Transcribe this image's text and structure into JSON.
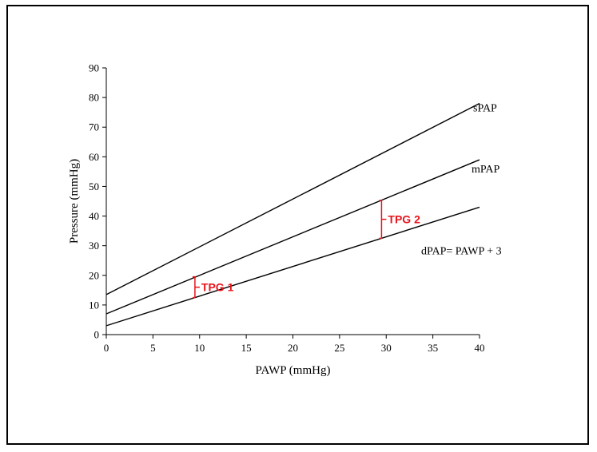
{
  "chart_data": {
    "type": "line",
    "title": "",
    "xlabel": "PAWP (mmHg)",
    "ylabel": "Pressure (mmHg)",
    "xlim": [
      0,
      40
    ],
    "ylim": [
      0,
      90
    ],
    "xticks": [
      0,
      5,
      10,
      15,
      20,
      25,
      30,
      35,
      40
    ],
    "yticks": [
      0,
      10,
      20,
      30,
      40,
      50,
      60,
      70,
      80,
      90
    ],
    "grid": false,
    "series": [
      {
        "name": "sPAP",
        "x": [
          0,
          40
        ],
        "y": [
          13.5,
          78
        ]
      },
      {
        "name": "mPAP",
        "x": [
          0,
          40
        ],
        "y": [
          7,
          59
        ]
      },
      {
        "name": "dPAP= PAWP + 3",
        "x": [
          0,
          40
        ],
        "y": [
          3,
          43
        ]
      }
    ],
    "annotations": [
      {
        "label": "TPG 1",
        "x": 9.5,
        "y_low": 12.5,
        "y_high": 19.5,
        "color": "#e8141b"
      },
      {
        "label": "TPG 2",
        "x": 29.5,
        "y_low": 32.5,
        "y_high": 45.3,
        "color": "#e8141b"
      }
    ],
    "line_color": "#000000"
  }
}
